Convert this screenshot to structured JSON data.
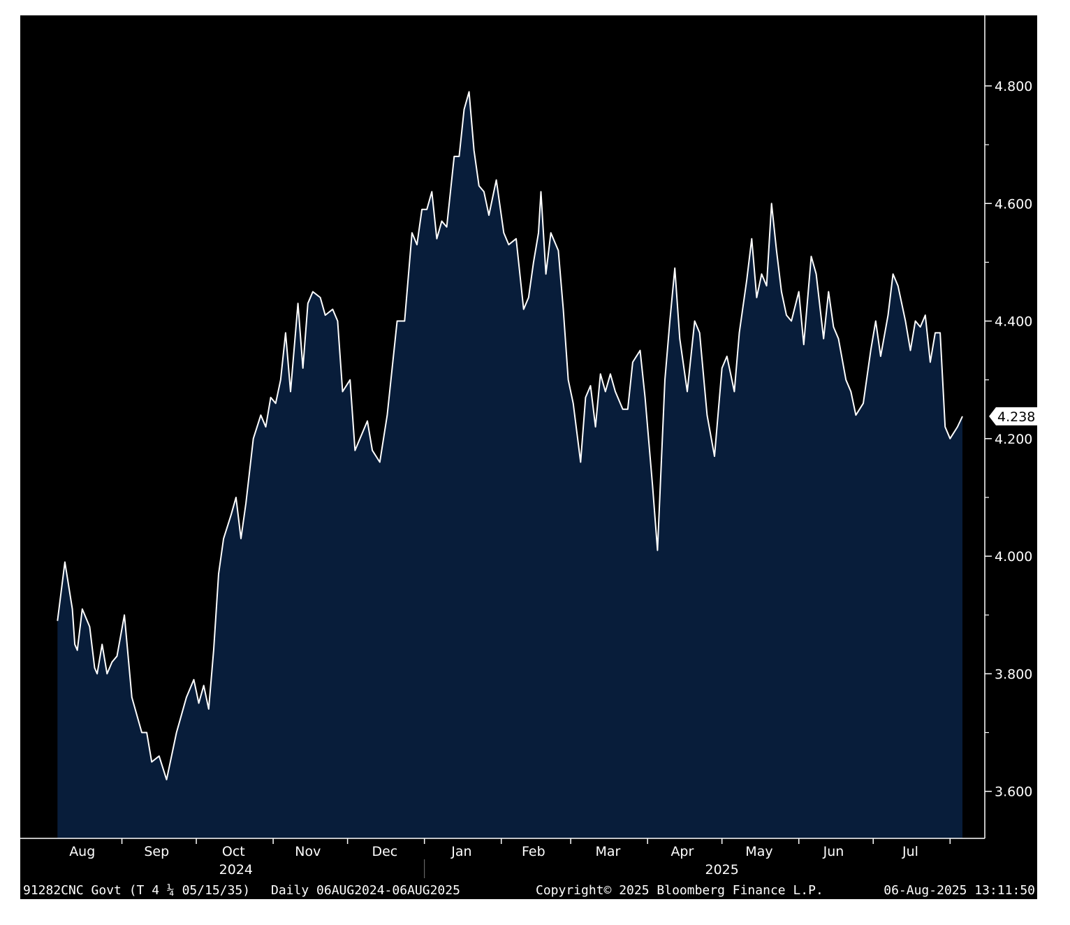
{
  "colors": {
    "background": "#000000",
    "area_fill": "#081d3a",
    "line": "#ffffff",
    "axis": "#ffffff",
    "last_value_badge": "#ffffff"
  },
  "footer": {
    "security": "91282CNC Govt (T 4 ¼ 05/15/35)",
    "range": "Daily 06AUG2024-06AUG2025",
    "copyright": "Copyright© 2025 Bloomberg Finance L.P.",
    "timestamp": "06-Aug-2025 13:11:50"
  },
  "last_value_label": "4.238",
  "chart_data": {
    "type": "area",
    "title": "",
    "xlabel": "",
    "ylabel": "",
    "y_axis_side": "right",
    "ylim": [
      3.52,
      4.92
    ],
    "yticks": [
      3.6,
      3.8,
      4.0,
      4.2,
      4.4,
      4.6,
      4.8
    ],
    "ytick_labels": [
      "3.600",
      "3.800",
      "4.000",
      "4.200",
      "4.400",
      "4.600",
      "4.800"
    ],
    "xlim": [
      "2024-07-22",
      "2025-08-15"
    ],
    "x_month_labels": [
      {
        "label": "Aug",
        "mid": "2024-08-16"
      },
      {
        "label": "Sep",
        "mid": "2024-09-15"
      },
      {
        "label": "Oct",
        "mid": "2024-10-16"
      },
      {
        "label": "Nov",
        "mid": "2024-11-15"
      },
      {
        "label": "Dec",
        "mid": "2024-12-16"
      },
      {
        "label": "Jan",
        "mid": "2025-01-16"
      },
      {
        "label": "Feb",
        "mid": "2025-02-14"
      },
      {
        "label": "Mar",
        "mid": "2025-03-16"
      },
      {
        "label": "Apr",
        "mid": "2025-04-15"
      },
      {
        "label": "May",
        "mid": "2025-05-16"
      },
      {
        "label": "Jun",
        "mid": "2025-06-15"
      },
      {
        "label": "Jul",
        "mid": "2025-07-16"
      }
    ],
    "x_month_boundaries": [
      "2024-09-01",
      "2024-10-01",
      "2024-11-01",
      "2024-12-01",
      "2025-01-01",
      "2025-02-01",
      "2025-03-01",
      "2025-04-01",
      "2025-05-01",
      "2025-06-01",
      "2025-07-01",
      "2025-08-01"
    ],
    "x_year_labels": [
      {
        "label": "2024",
        "date": "2024-10-17"
      },
      {
        "label": "2025",
        "date": "2025-05-01"
      }
    ],
    "year_divider": "2025-01-01",
    "legend": "none",
    "grid": false,
    "series": [
      {
        "name": "91282CNC Govt (T 4 ¼ 05/15/35)",
        "values": [
          [
            "2024-08-06",
            3.89
          ],
          [
            "2024-08-09",
            3.99
          ],
          [
            "2024-08-12",
            3.91
          ],
          [
            "2024-08-13",
            3.85
          ],
          [
            "2024-08-14",
            3.84
          ],
          [
            "2024-08-16",
            3.91
          ],
          [
            "2024-08-19",
            3.88
          ],
          [
            "2024-08-21",
            3.81
          ],
          [
            "2024-08-22",
            3.8
          ],
          [
            "2024-08-24",
            3.85
          ],
          [
            "2024-08-26",
            3.8
          ],
          [
            "2024-08-28",
            3.82
          ],
          [
            "2024-08-30",
            3.83
          ],
          [
            "2024-09-02",
            3.9
          ],
          [
            "2024-09-05",
            3.76
          ],
          [
            "2024-09-09",
            3.7
          ],
          [
            "2024-09-11",
            3.7
          ],
          [
            "2024-09-13",
            3.65
          ],
          [
            "2024-09-16",
            3.66
          ],
          [
            "2024-09-19",
            3.62
          ],
          [
            "2024-09-23",
            3.7
          ],
          [
            "2024-09-25",
            3.73
          ],
          [
            "2024-09-27",
            3.76
          ],
          [
            "2024-09-30",
            3.79
          ],
          [
            "2024-10-02",
            3.75
          ],
          [
            "2024-10-04",
            3.78
          ],
          [
            "2024-10-06",
            3.74
          ],
          [
            "2024-10-08",
            3.84
          ],
          [
            "2024-10-10",
            3.97
          ],
          [
            "2024-10-12",
            4.03
          ],
          [
            "2024-10-15",
            4.07
          ],
          [
            "2024-10-17",
            4.1
          ],
          [
            "2024-10-19",
            4.03
          ],
          [
            "2024-10-21",
            4.09
          ],
          [
            "2024-10-24",
            4.2
          ],
          [
            "2024-10-27",
            4.24
          ],
          [
            "2024-10-29",
            4.22
          ],
          [
            "2024-10-31",
            4.27
          ],
          [
            "2024-11-02",
            4.26
          ],
          [
            "2024-11-04",
            4.3
          ],
          [
            "2024-11-06",
            4.38
          ],
          [
            "2024-11-08",
            4.28
          ],
          [
            "2024-11-11",
            4.43
          ],
          [
            "2024-11-13",
            4.32
          ],
          [
            "2024-11-15",
            4.43
          ],
          [
            "2024-11-17",
            4.45
          ],
          [
            "2024-11-20",
            4.44
          ],
          [
            "2024-11-22",
            4.41
          ],
          [
            "2024-11-25",
            4.42
          ],
          [
            "2024-11-27",
            4.4
          ],
          [
            "2024-11-29",
            4.28
          ],
          [
            "2024-12-02",
            4.3
          ],
          [
            "2024-12-04",
            4.18
          ],
          [
            "2024-12-06",
            4.2
          ],
          [
            "2024-12-09",
            4.23
          ],
          [
            "2024-12-11",
            4.18
          ],
          [
            "2024-12-14",
            4.16
          ],
          [
            "2024-12-17",
            4.24
          ],
          [
            "2024-12-19",
            4.32
          ],
          [
            "2024-12-21",
            4.4
          ],
          [
            "2024-12-24",
            4.4
          ],
          [
            "2024-12-27",
            4.55
          ],
          [
            "2024-12-29",
            4.53
          ],
          [
            "2024-12-31",
            4.59
          ],
          [
            "2025-01-02",
            4.59
          ],
          [
            "2025-01-04",
            4.62
          ],
          [
            "2025-01-06",
            4.54
          ],
          [
            "2025-01-08",
            4.57
          ],
          [
            "2025-01-10",
            4.56
          ],
          [
            "2025-01-13",
            4.68
          ],
          [
            "2025-01-15",
            4.68
          ],
          [
            "2025-01-17",
            4.76
          ],
          [
            "2025-01-19",
            4.79
          ],
          [
            "2025-01-21",
            4.69
          ],
          [
            "2025-01-23",
            4.63
          ],
          [
            "2025-01-25",
            4.62
          ],
          [
            "2025-01-27",
            4.58
          ],
          [
            "2025-01-30",
            4.64
          ],
          [
            "2025-02-02",
            4.55
          ],
          [
            "2025-02-04",
            4.53
          ],
          [
            "2025-02-07",
            4.54
          ],
          [
            "2025-02-10",
            4.42
          ],
          [
            "2025-02-12",
            4.44
          ],
          [
            "2025-02-14",
            4.5
          ],
          [
            "2025-02-16",
            4.55
          ],
          [
            "2025-02-17",
            4.62
          ],
          [
            "2025-02-19",
            4.48
          ],
          [
            "2025-02-21",
            4.55
          ],
          [
            "2025-02-24",
            4.52
          ],
          [
            "2025-02-26",
            4.42
          ],
          [
            "2025-02-28",
            4.3
          ],
          [
            "2025-03-02",
            4.26
          ],
          [
            "2025-03-05",
            4.16
          ],
          [
            "2025-03-07",
            4.27
          ],
          [
            "2025-03-09",
            4.29
          ],
          [
            "2025-03-11",
            4.22
          ],
          [
            "2025-03-13",
            4.31
          ],
          [
            "2025-03-15",
            4.28
          ],
          [
            "2025-03-17",
            4.31
          ],
          [
            "2025-03-19",
            4.28
          ],
          [
            "2025-03-22",
            4.25
          ],
          [
            "2025-03-24",
            4.25
          ],
          [
            "2025-03-26",
            4.33
          ],
          [
            "2025-03-29",
            4.35
          ],
          [
            "2025-03-31",
            4.27
          ],
          [
            "2025-04-03",
            4.12
          ],
          [
            "2025-04-05",
            4.01
          ],
          [
            "2025-04-08",
            4.3
          ],
          [
            "2025-04-10",
            4.4
          ],
          [
            "2025-04-12",
            4.49
          ],
          [
            "2025-04-14",
            4.37
          ],
          [
            "2025-04-17",
            4.28
          ],
          [
            "2025-04-20",
            4.4
          ],
          [
            "2025-04-22",
            4.38
          ],
          [
            "2025-04-25",
            4.24
          ],
          [
            "2025-04-28",
            4.17
          ],
          [
            "2025-05-01",
            4.32
          ],
          [
            "2025-05-03",
            4.34
          ],
          [
            "2025-05-06",
            4.28
          ],
          [
            "2025-05-08",
            4.38
          ],
          [
            "2025-05-11",
            4.47
          ],
          [
            "2025-05-13",
            4.54
          ],
          [
            "2025-05-15",
            4.44
          ],
          [
            "2025-05-17",
            4.48
          ],
          [
            "2025-05-19",
            4.46
          ],
          [
            "2025-05-21",
            4.6
          ],
          [
            "2025-05-23",
            4.52
          ],
          [
            "2025-05-25",
            4.45
          ],
          [
            "2025-05-27",
            4.41
          ],
          [
            "2025-05-29",
            4.4
          ],
          [
            "2025-06-01",
            4.45
          ],
          [
            "2025-06-03",
            4.36
          ],
          [
            "2025-06-06",
            4.51
          ],
          [
            "2025-06-08",
            4.48
          ],
          [
            "2025-06-11",
            4.37
          ],
          [
            "2025-06-13",
            4.45
          ],
          [
            "2025-06-15",
            4.39
          ],
          [
            "2025-06-17",
            4.37
          ],
          [
            "2025-06-20",
            4.3
          ],
          [
            "2025-06-22",
            4.28
          ],
          [
            "2025-06-24",
            4.24
          ],
          [
            "2025-06-27",
            4.26
          ],
          [
            "2025-06-30",
            4.35
          ],
          [
            "2025-07-02",
            4.4
          ],
          [
            "2025-07-04",
            4.34
          ],
          [
            "2025-07-07",
            4.41
          ],
          [
            "2025-07-09",
            4.48
          ],
          [
            "2025-07-11",
            4.46
          ],
          [
            "2025-07-14",
            4.4
          ],
          [
            "2025-07-16",
            4.35
          ],
          [
            "2025-07-18",
            4.4
          ],
          [
            "2025-07-20",
            4.39
          ],
          [
            "2025-07-22",
            4.41
          ],
          [
            "2025-07-24",
            4.33
          ],
          [
            "2025-07-26",
            4.38
          ],
          [
            "2025-07-28",
            4.38
          ],
          [
            "2025-07-30",
            4.22
          ],
          [
            "2025-08-01",
            4.2
          ],
          [
            "2025-08-04",
            4.22
          ],
          [
            "2025-08-06",
            4.238
          ]
        ]
      }
    ]
  }
}
